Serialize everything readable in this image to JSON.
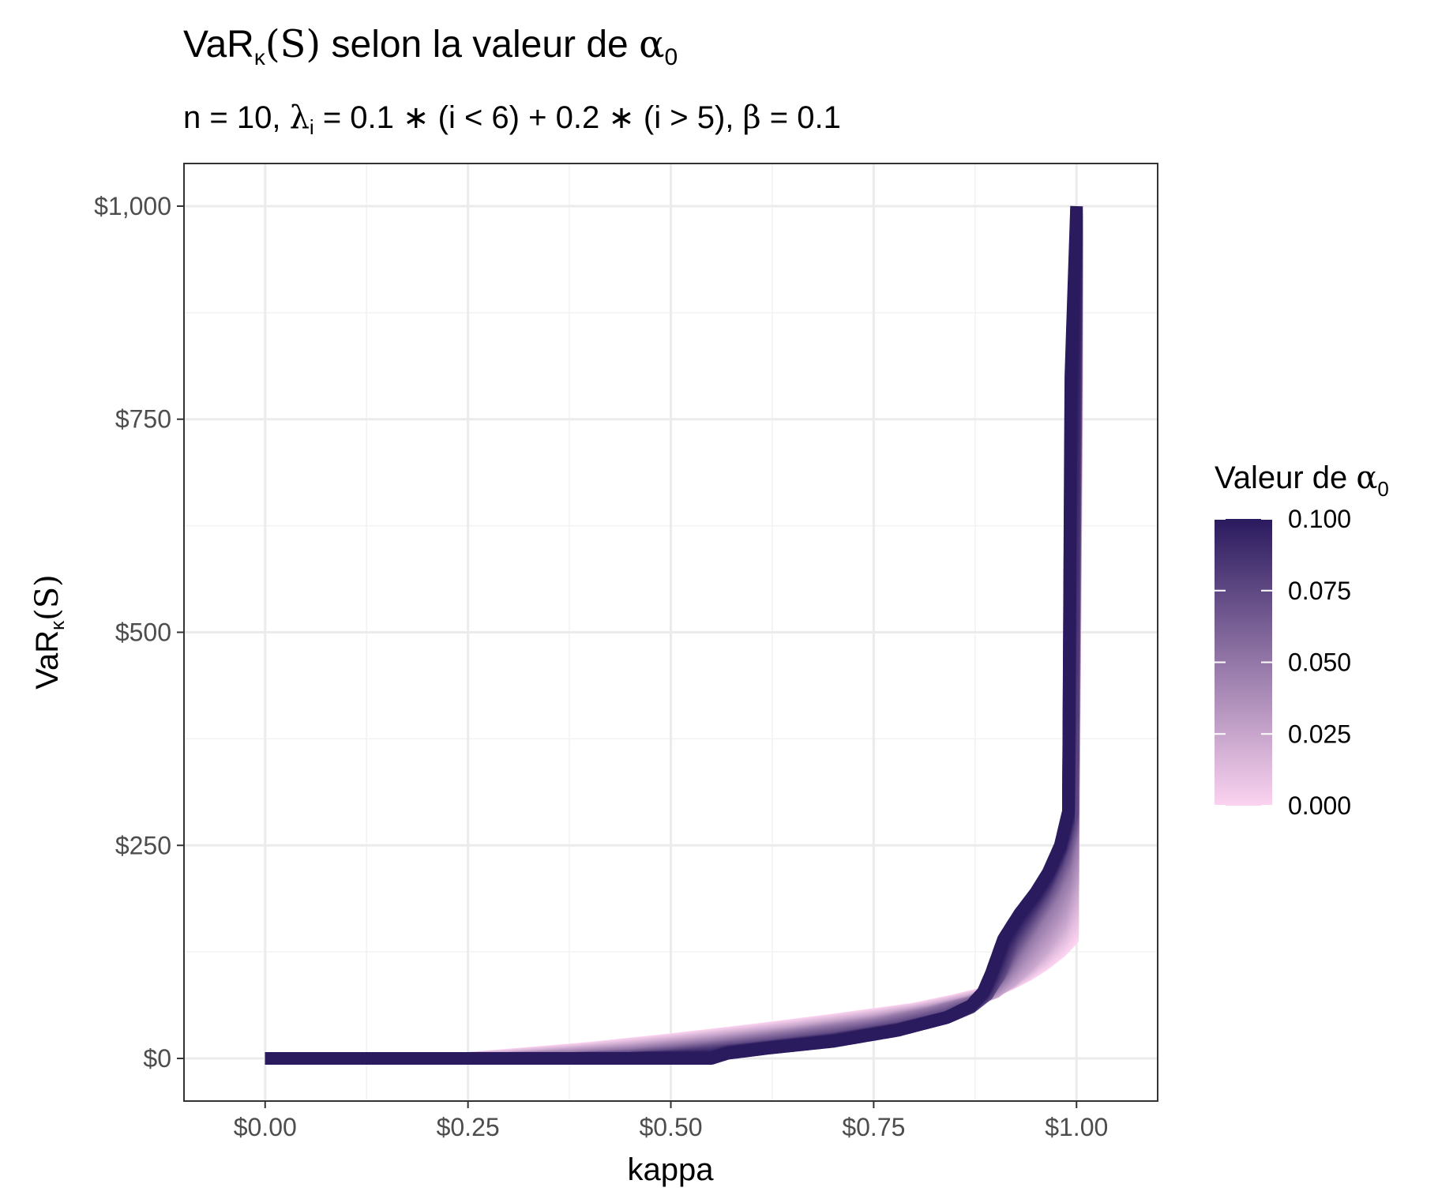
{
  "chart_data": {
    "type": "line",
    "title": {
      "main_prefix": "VaR",
      "main_sub": "κ",
      "main_paren": "(S)",
      "main_mid": " selon la valeur de ",
      "main_alpha": "α",
      "main_alpha_sub": "0"
    },
    "subtitle": {
      "n_part": "n = 10, ",
      "lambda": "λ",
      "lambda_sub": "i",
      "lambda_expr": " = 0.1 ∗ (i < 6) + 0.2 ∗ (i > 5), ",
      "beta": "β",
      "beta_expr": " = 0.1"
    },
    "xlabel": "kappa",
    "ylabel": {
      "prefix": "VaR",
      "sub": "κ",
      "paren": "(S)"
    },
    "xlim": [
      -0.1,
      1.1
    ],
    "ylim": [
      -50,
      1050
    ],
    "x_ticks": [
      {
        "value": 0.0,
        "label": "$0.00"
      },
      {
        "value": 0.25,
        "label": "$0.25"
      },
      {
        "value": 0.5,
        "label": "$0.50"
      },
      {
        "value": 0.75,
        "label": "$0.75"
      },
      {
        "value": 1.0,
        "label": "$1.00"
      }
    ],
    "y_ticks": [
      {
        "value": 0,
        "label": "$0"
      },
      {
        "value": 250,
        "label": "$250"
      },
      {
        "value": 500,
        "label": "$500"
      },
      {
        "value": 750,
        "label": "$750"
      },
      {
        "value": 1000,
        "label": "$1,000"
      }
    ],
    "grid": true,
    "legend": {
      "title_prefix": "Valeur de ",
      "title_alpha": "α",
      "title_sub": "0",
      "placement": "right",
      "type": "colorbar",
      "min": 0.0,
      "max": 0.1,
      "breaks": [
        {
          "value": 0.1,
          "label": "0.100"
        },
        {
          "value": 0.075,
          "label": "0.075"
        },
        {
          "value": 0.05,
          "label": "0.050"
        },
        {
          "value": 0.025,
          "label": "0.025"
        },
        {
          "value": 0.0,
          "label": "0.000"
        }
      ],
      "color_low": "#fbd3f0",
      "color_high": "#2a1a5e"
    },
    "series": [
      {
        "alpha0": 0.0,
        "x": [
          0.0,
          0.25,
          0.3,
          0.4,
          0.5,
          0.6,
          0.7,
          0.8,
          0.85,
          0.88,
          0.9,
          0.92,
          0.94,
          0.96,
          0.98,
          0.995,
          1.0
        ],
        "y": [
          0,
          0,
          4,
          12,
          22,
          33,
          45,
          58,
          68,
          75,
          80,
          88,
          98,
          110,
          125,
          140,
          750
        ]
      },
      {
        "alpha0": 0.025,
        "x": [
          0.0,
          0.3,
          0.35,
          0.45,
          0.55,
          0.65,
          0.75,
          0.82,
          0.87,
          0.9,
          0.92,
          0.94,
          0.96,
          0.98,
          0.995,
          1.0
        ],
        "y": [
          0,
          0,
          3,
          10,
          20,
          31,
          44,
          56,
          67,
          78,
          92,
          110,
          132,
          160,
          200,
          820
        ]
      },
      {
        "alpha0": 0.05,
        "x": [
          0.0,
          0.38,
          0.45,
          0.55,
          0.65,
          0.75,
          0.82,
          0.87,
          0.89,
          0.91,
          0.93,
          0.95,
          0.97,
          0.985,
          0.995,
          1.0
        ],
        "y": [
          0,
          0,
          4,
          13,
          25,
          38,
          52,
          65,
          78,
          100,
          130,
          160,
          190,
          220,
          260,
          900
        ]
      },
      {
        "alpha0": 0.075,
        "x": [
          0.0,
          0.45,
          0.5,
          0.6,
          0.7,
          0.78,
          0.84,
          0.87,
          0.89,
          0.905,
          0.92,
          0.94,
          0.96,
          0.975,
          0.985,
          0.995,
          1.0
        ],
        "y": [
          0,
          0,
          3,
          12,
          23,
          35,
          48,
          60,
          75,
          100,
          135,
          165,
          195,
          225,
          250,
          290,
          960
        ]
      },
      {
        "alpha0": 0.1,
        "x": [
          0.0,
          0.55,
          0.57,
          0.62,
          0.7,
          0.78,
          0.84,
          0.87,
          0.885,
          0.895,
          0.91,
          0.93,
          0.95,
          0.965,
          0.98,
          0.99,
          0.993,
          1.0
        ],
        "y": [
          0,
          0,
          6,
          12,
          20,
          33,
          48,
          62,
          78,
          100,
          140,
          170,
          195,
          218,
          250,
          290,
          800,
          1000
        ]
      }
    ]
  }
}
